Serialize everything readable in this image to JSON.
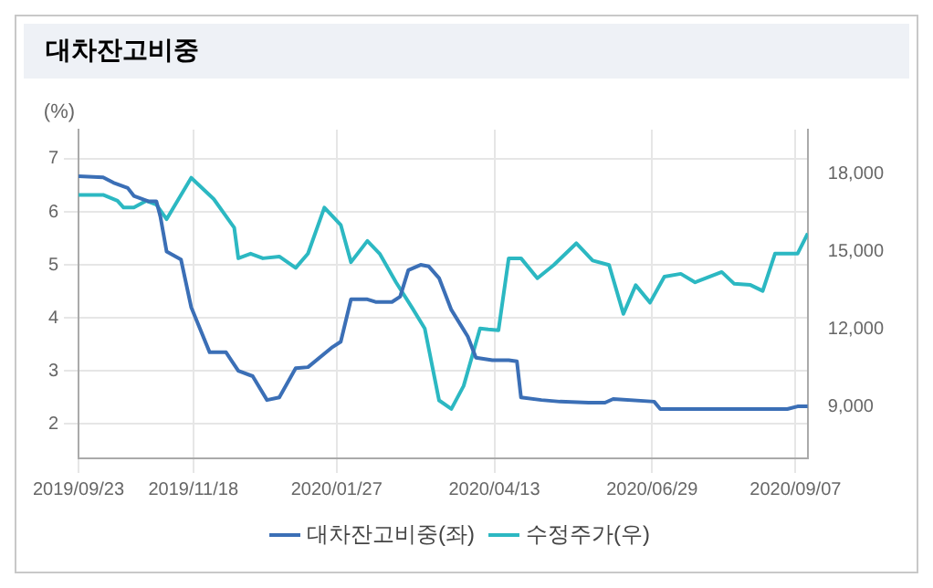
{
  "chart_data": {
    "type": "line",
    "title": "대차잔고비중",
    "ylabel": "(%)",
    "series": [
      {
        "name": "대차잔고비중(좌)",
        "color": "#3b6fb6",
        "x": [
          "2019-09-23",
          "2019-10-05",
          "2019-10-10",
          "2019-10-17",
          "2019-10-20",
          "2019-10-27",
          "2019-10-31",
          "2019-11-02",
          "2019-11-05",
          "2019-11-12",
          "2019-11-17",
          "2019-11-26",
          "2019-12-04",
          "2019-12-10",
          "2019-12-17",
          "2019-12-24",
          "2019-12-30",
          "2020-01-07",
          "2020-01-13",
          "2020-01-25",
          "2020-01-29",
          "2020-02-03",
          "2020-02-11",
          "2020-02-15",
          "2020-02-23",
          "2020-02-27",
          "2020-03-02",
          "2020-03-08",
          "2020-03-12",
          "2020-03-17",
          "2020-03-23",
          "2020-03-31",
          "2020-04-04",
          "2020-04-12",
          "2020-04-20",
          "2020-04-24",
          "2020-04-26",
          "2020-05-06",
          "2020-05-15",
          "2020-05-29",
          "2020-06-06",
          "2020-06-10",
          "2020-06-30",
          "2020-07-03",
          "2020-09-03",
          "2020-09-08",
          "2020-09-13"
        ],
        "values": [
          6.67,
          6.65,
          6.55,
          6.45,
          6.3,
          6.2,
          6.2,
          5.9,
          5.25,
          5.1,
          4.2,
          3.35,
          3.35,
          3.0,
          2.9,
          2.45,
          2.5,
          3.05,
          3.07,
          3.45,
          3.55,
          4.35,
          4.35,
          4.3,
          4.3,
          4.4,
          4.9,
          5.0,
          4.97,
          4.75,
          4.15,
          3.65,
          3.25,
          3.2,
          3.2,
          3.18,
          2.5,
          2.45,
          2.42,
          2.4,
          2.4,
          2.47,
          2.42,
          2.28,
          2.28,
          2.33,
          2.33
        ]
      },
      {
        "name": "수정주가(우)",
        "color": "#2cb8c2",
        "axis": "y2",
        "x": [
          "2019-09-23",
          "2019-10-05",
          "2019-10-12",
          "2019-10-15",
          "2019-10-20",
          "2019-10-26",
          "2019-10-31",
          "2019-11-05",
          "2019-11-17",
          "2019-11-28",
          "2019-12-08",
          "2019-12-10",
          "2019-12-16",
          "2019-12-22",
          "2019-12-30",
          "2020-01-07",
          "2020-01-13",
          "2020-01-21",
          "2020-01-29",
          "2020-02-03",
          "2020-02-11",
          "2020-02-17",
          "2020-02-25",
          "2020-03-04",
          "2020-03-10",
          "2020-03-17",
          "2020-03-23",
          "2020-03-29",
          "2020-04-06",
          "2020-04-10",
          "2020-04-15",
          "2020-04-20",
          "2020-04-26",
          "2020-05-04",
          "2020-05-12",
          "2020-05-23",
          "2020-05-31",
          "2020-06-08",
          "2020-06-15",
          "2020-06-21",
          "2020-06-28",
          "2020-07-05",
          "2020-07-13",
          "2020-07-20",
          "2020-08-02",
          "2020-08-08",
          "2020-08-16",
          "2020-08-22",
          "2020-08-28",
          "2020-09-08",
          "2020-09-13"
        ],
        "values": [
          17180,
          17180,
          16950,
          16690,
          16690,
          16950,
          16800,
          16240,
          17840,
          17020,
          15910,
          14730,
          14910,
          14730,
          14800,
          14360,
          14910,
          16690,
          16020,
          14580,
          15400,
          14910,
          13800,
          12800,
          12020,
          9240,
          8910,
          9800,
          12020,
          11980,
          11950,
          14730,
          14730,
          13960,
          14470,
          15310,
          14640,
          14470,
          12580,
          13690,
          13020,
          14020,
          14130,
          13800,
          14200,
          13750,
          13700,
          13470,
          14910,
          14910,
          15690
        ]
      }
    ],
    "xlim": [
      "2019-09-23",
      "2020-09-13"
    ],
    "xticks": [
      {
        "value": "2019-09-23",
        "label": "2019/09/23"
      },
      {
        "value": "2019-11-18",
        "label": "2019/11/18"
      },
      {
        "value": "2020-01-27",
        "label": "2020/01/27"
      },
      {
        "value": "2020-04-13",
        "label": "2020/04/13"
      },
      {
        "value": "2020-06-29",
        "label": "2020/06/29"
      },
      {
        "value": "2020-09-07",
        "label": "2020/09/07"
      }
    ],
    "ylim": [
      1.35,
      7.55
    ],
    "yticks": [
      2,
      3,
      4,
      5,
      6,
      7
    ],
    "y2lim": [
      7000,
      19700
    ],
    "y2ticks": [
      {
        "value": 9000,
        "label": "9,000"
      },
      {
        "value": 12000,
        "label": "12,000"
      },
      {
        "value": 15000,
        "label": "15,000"
      },
      {
        "value": 18000,
        "label": "18,000"
      }
    ],
    "grid": true,
    "legend": "bottom",
    "marker": "none",
    "line_style": "solid"
  }
}
